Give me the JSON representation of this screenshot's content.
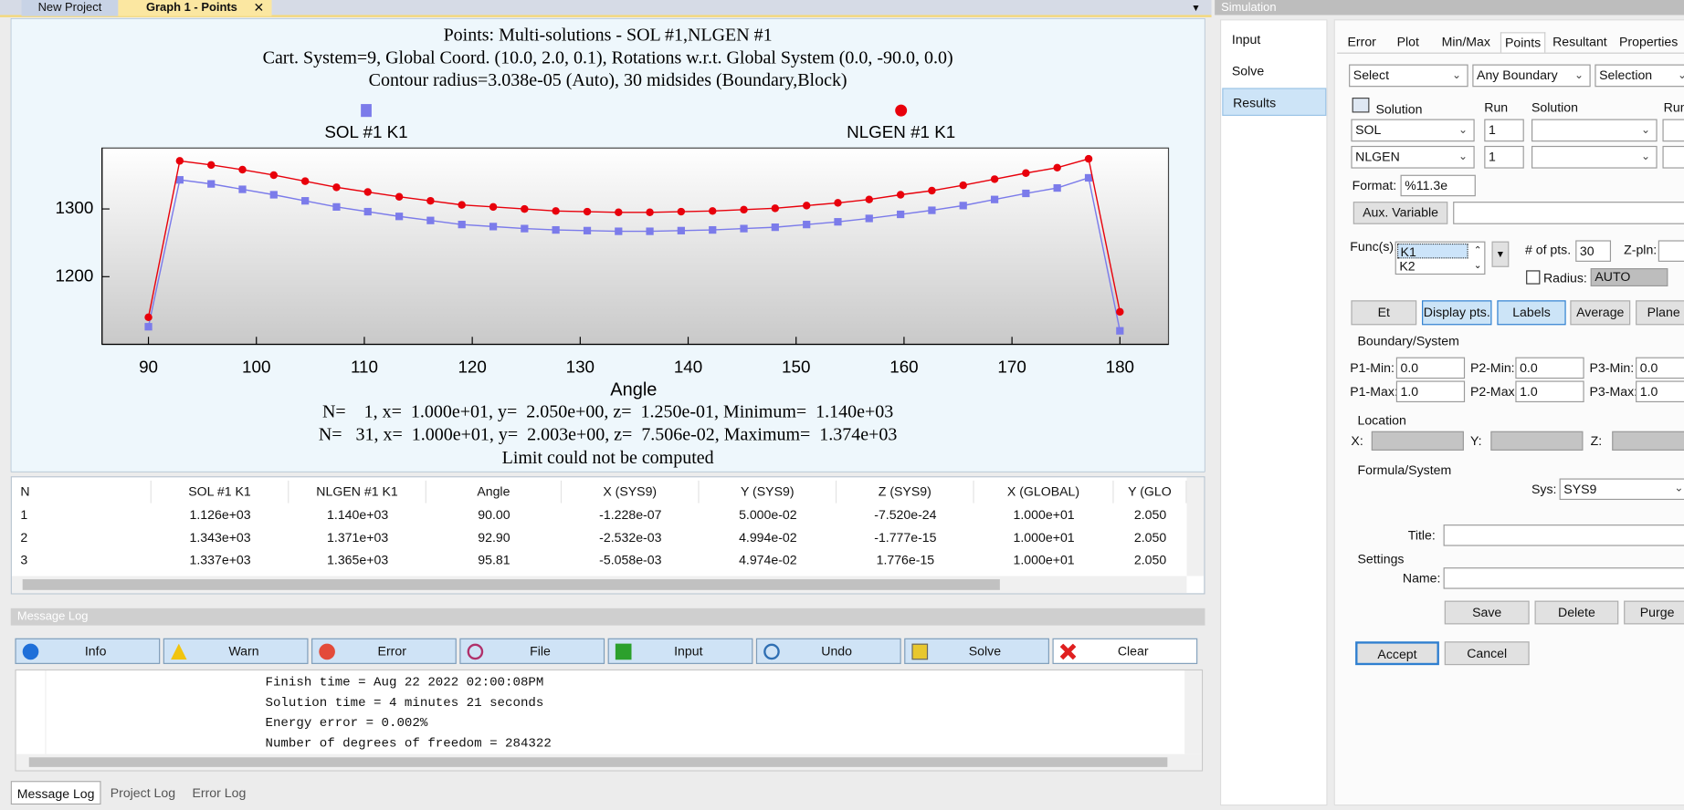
{
  "doc_tabs": [
    "New Project",
    "Graph 1 - Points"
  ],
  "chart_data": {
    "type": "line",
    "title": "Points: Multi-solutions - SOL #1,NLGEN #1",
    "subtitle": [
      "Cart. System=9, Global Coord. (10.0, 2.0, 0.1), Rotations w.r.t. Global System (0.0, -90.0, 0.0)",
      "Contour radius=3.038e-05 (Auto), 30 midsides (Boundary,Block)"
    ],
    "x_label": "Angle",
    "x": [
      90,
      92.9,
      95.81,
      98.71,
      101.61,
      104.52,
      107.42,
      110.32,
      113.23,
      116.13,
      119.03,
      121.94,
      124.84,
      127.74,
      130.65,
      133.55,
      136.45,
      139.35,
      142.26,
      145.16,
      148.06,
      150.97,
      153.87,
      156.77,
      159.68,
      162.58,
      165.48,
      168.39,
      171.29,
      174.19,
      177.1,
      180
    ],
    "series": [
      {
        "name": "SOL #1 K1",
        "color": "#7b7bea",
        "marker": "square",
        "values": [
          1126,
          1343,
          1337,
          1329,
          1321,
          1312,
          1303,
          1296,
          1289,
          1283,
          1277,
          1274,
          1271,
          1269,
          1268,
          1267,
          1267,
          1268,
          1269,
          1271,
          1273,
          1277,
          1281,
          1286,
          1292,
          1298,
          1305,
          1314,
          1323,
          1331,
          1346,
          1120
        ]
      },
      {
        "name": "NLGEN #1 K1",
        "color": "#e8000b",
        "marker": "circle",
        "values": [
          1140,
          1371,
          1365,
          1358,
          1350,
          1341,
          1332,
          1325,
          1318,
          1312,
          1306,
          1303,
          1300,
          1297,
          1296,
          1295,
          1295,
          1296,
          1297,
          1299,
          1301,
          1305,
          1309,
          1314,
          1321,
          1327,
          1335,
          1344,
          1353,
          1361,
          1374,
          1148
        ]
      }
    ],
    "xlim": [
      85.7,
      184.5
    ],
    "ylim": [
      1100,
      1390
    ],
    "xticks": [
      90,
      100,
      110,
      120,
      130,
      140,
      150,
      160,
      170,
      180
    ],
    "yticks": [
      1200,
      1300
    ],
    "status": [
      "N=    1, x=  1.000e+01, y=  2.050e+00, z=  1.250e-01, Minimum=  1.140e+03",
      "N=   31, x=  1.000e+01, y=  2.003e+00, z=  7.506e-02, Maximum=  1.374e+03",
      "Limit could not be computed"
    ]
  },
  "table": {
    "columns": [
      "N",
      "SOL #1 K1",
      "NLGEN #1 K1",
      "Angle",
      "X (SYS9)",
      "Y (SYS9)",
      "Z (SYS9)",
      "X (GLOBAL)",
      "Y (GLO"
    ],
    "rows": [
      [
        "1",
        "1.126e+03",
        "1.140e+03",
        "90.00",
        "-1.228e-07",
        "5.000e-02",
        "-7.520e-24",
        "1.000e+01",
        "2.050"
      ],
      [
        "2",
        "1.343e+03",
        "1.371e+03",
        "92.90",
        "-2.532e-03",
        "4.994e-02",
        "-1.777e-15",
        "1.000e+01",
        "2.050"
      ],
      [
        "3",
        "1.337e+03",
        "1.365e+03",
        "95.81",
        "-5.058e-03",
        "4.974e-02",
        "1.776e-15",
        "1.000e+01",
        "2.050"
      ]
    ]
  },
  "message_log": {
    "title": "Message Log",
    "buttons": [
      "Info",
      "Warn",
      "Error",
      "File",
      "Input",
      "Undo",
      "Solve",
      "Clear"
    ],
    "lines": [
      "Finish time = Aug 22 2022 02:00:08PM",
      "Solution time = 4 minutes 21 seconds",
      "Energy error = 0.002%",
      "Number of degrees of freedom = 284322"
    ],
    "tabs": [
      "Message Log",
      "Project Log",
      "Error Log"
    ]
  },
  "simulation": {
    "title": "Simulation",
    "menu": [
      "Input",
      "Solve",
      "Results"
    ],
    "tabs": [
      "Error",
      "Plot",
      "Min/Max",
      "Points",
      "Resultant",
      "Properties"
    ],
    "selectors": [
      "Select",
      "Any Boundary",
      "Selection"
    ],
    "solution_headers": [
      "Solution",
      "Run",
      "Solution",
      "Run"
    ],
    "solutions": [
      {
        "solution": "SOL",
        "run": "1"
      },
      {
        "solution": "NLGEN",
        "run": "1"
      }
    ],
    "format_label": "Format:",
    "format": "%11.3e",
    "aux_variable": "Aux. Variable",
    "funcs_label": "Func(s):",
    "funcs": [
      "K1",
      "K2"
    ],
    "pts_label": "# of pts.",
    "pts": "30",
    "zpln_label": "Z-pln:",
    "radius_label": "Radius:",
    "radius": "AUTO",
    "buttons": [
      "Et",
      "Display pts.",
      "Labels",
      "Average",
      "Plane"
    ],
    "boundary_title": "Boundary/System",
    "boundary": [
      [
        {
          "label": "P1-Min:",
          "value": "0.0"
        },
        {
          "label": "P2-Min:",
          "value": "0.0"
        },
        {
          "label": "P3-Min:",
          "value": "0.0"
        }
      ],
      [
        {
          "label": "P1-Max:",
          "value": "1.0"
        },
        {
          "label": "P2-Max:",
          "value": "1.0"
        },
        {
          "label": "P3-Max:",
          "value": "1.0"
        }
      ]
    ],
    "location_title": "Location",
    "location_labels": [
      "X:",
      "Y:",
      "Z:"
    ],
    "formula_title": "Formula/System",
    "sys_label": "Sys:",
    "sys": "SYS9",
    "title_label": "Title:",
    "settings_title": "Settings",
    "name_label": "Name:",
    "settings_buttons": [
      "Save",
      "Delete",
      "Purge"
    ],
    "actions": [
      "Accept",
      "Cancel"
    ]
  }
}
